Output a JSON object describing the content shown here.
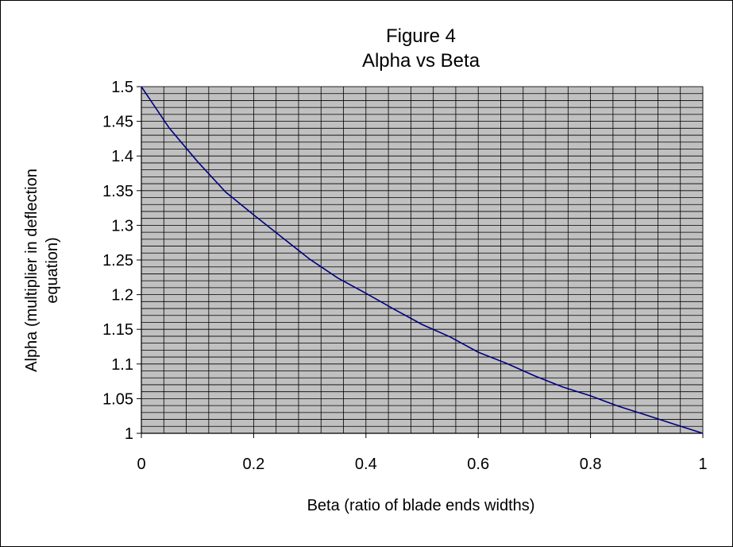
{
  "chart_data": {
    "type": "line",
    "title": "Figure 4",
    "subtitle": "Alpha vs Beta",
    "xlabel": "Beta (ratio of blade ends widths)",
    "ylabel_line1": "Alpha (multiplier in deflection",
    "ylabel_line2": "equation)",
    "xlim": [
      0,
      1
    ],
    "ylim": [
      1,
      1.5
    ],
    "x_ticks": [
      0,
      0.2,
      0.4,
      0.6,
      0.8,
      1
    ],
    "x_tick_labels": [
      "0",
      "0.2",
      "0.4",
      "0.6",
      "0.8",
      "1"
    ],
    "y_ticks": [
      1,
      1.05,
      1.1,
      1.15,
      1.2,
      1.25,
      1.3,
      1.35,
      1.4,
      1.45,
      1.5
    ],
    "y_tick_labels": [
      "1",
      "1.05",
      "1.1",
      "1.15",
      "1.2",
      "1.25",
      "1.3",
      "1.35",
      "1.4",
      "1.45",
      "1.5"
    ],
    "x_gridlines": [
      0,
      0.04,
      0.08,
      0.12,
      0.16,
      0.2,
      0.24,
      0.28,
      0.32,
      0.36,
      0.4,
      0.44,
      0.48,
      0.52,
      0.56,
      0.6,
      0.64,
      0.68,
      0.72,
      0.76,
      0.8,
      0.84,
      0.88,
      0.92,
      0.96,
      1
    ],
    "y_gridline_step": 0.01,
    "grid": true,
    "legend": "none",
    "colors": {
      "plot_background": "#c0c0c0",
      "gridlines": "#000000",
      "series": "#000080"
    },
    "series": [
      {
        "x": [
          0,
          0.05,
          0.1,
          0.15,
          0.2,
          0.25,
          0.3,
          0.35,
          0.4,
          0.45,
          0.5,
          0.55,
          0.6,
          0.65,
          0.7,
          0.75,
          0.8,
          0.85,
          0.9,
          0.95,
          1
        ],
        "values": [
          1.5,
          1.44,
          1.392,
          1.348,
          1.315,
          1.283,
          1.251,
          1.224,
          1.202,
          1.179,
          1.157,
          1.139,
          1.117,
          1.101,
          1.083,
          1.067,
          1.054,
          1.039,
          1.026,
          1.013,
          1.0
        ]
      }
    ]
  }
}
